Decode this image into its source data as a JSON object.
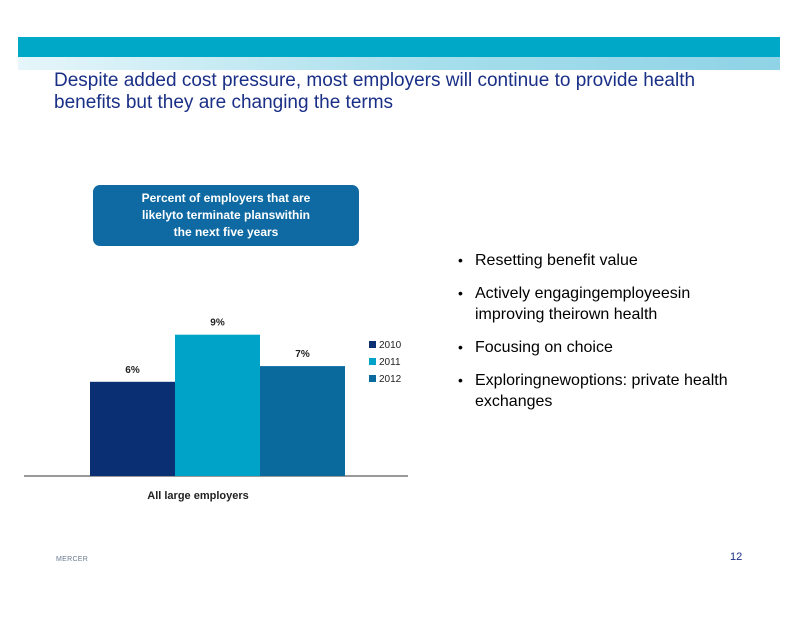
{
  "slide": {
    "title": "Despite added cost pressure, most employers will continue to provide health benefits but they are changing the terms",
    "footer_brand": "MERCER",
    "page_number": "12"
  },
  "callout": {
    "lines": [
      "Percent of employers that are",
      "likelyto terminate planswithin",
      "the next five years"
    ]
  },
  "bullets": [
    "Resetting benefit value",
    "Actively engagingemployeesin improving theirown health",
    "Focusing on choice",
    "Exploringnewoptions: private health exchanges"
  ],
  "colors": {
    "band_dark": "#00a8c8",
    "band_light": "#a6deec",
    "title": "#1a2f86",
    "callout_bg": "#0f6aa3",
    "series_2010": "#0a2f73",
    "series_2011": "#00a3c8",
    "series_2012": "#0a6a9e"
  },
  "chart_data": {
    "type": "bar",
    "categories": [
      "All large employers"
    ],
    "series": [
      {
        "name": "2010",
        "values": [
          6
        ],
        "label": "6%"
      },
      {
        "name": "2011",
        "values": [
          9
        ],
        "label": "9%"
      },
      {
        "name": "2012",
        "values": [
          7
        ],
        "label": "7%"
      }
    ],
    "unit": "%",
    "legend": "right",
    "grid": false
  }
}
